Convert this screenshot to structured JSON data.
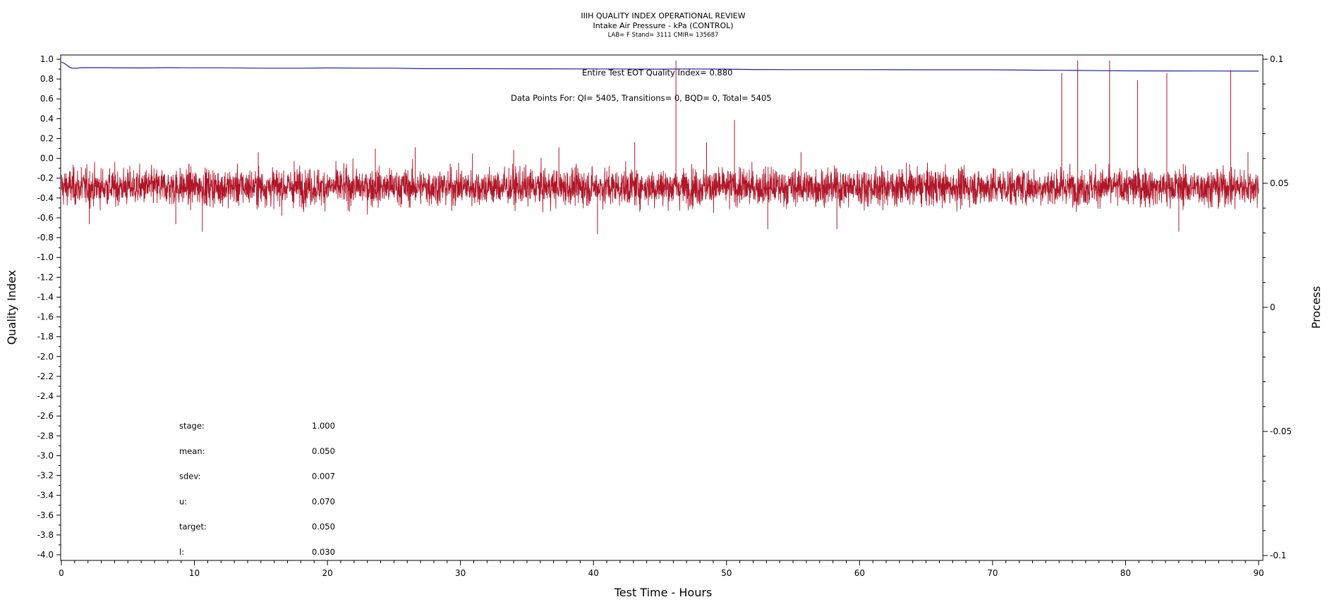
{
  "chart_data": {
    "type": "line",
    "title": "IIIH QUALITY INDEX OPERATIONAL REVIEW",
    "subtitle": "Intake Air Pressure - kPa (CONTROL)",
    "subtitle2": "LAB= F Stand= 3111 CMIR= 135687",
    "xlabel": "Test Time - Hours",
    "ylabel": "Quality Index",
    "y2label": "Process",
    "xlim": [
      0,
      90
    ],
    "ylim": [
      -4.0,
      1.0
    ],
    "y2lim": [
      -0.1,
      0.1
    ],
    "x_ticks": [
      "0",
      "10",
      "20",
      "30",
      "40",
      "50",
      "60",
      "70",
      "80",
      "90"
    ],
    "y_ticks": [
      "1.0",
      "0.8",
      "0.6",
      "0.4",
      "0.2",
      "0.0",
      "-0.2",
      "-0.4",
      "-0.6",
      "-0.8",
      "-1.0",
      "-1.2",
      "-1.4",
      "-1.6",
      "-1.8",
      "-2.0",
      "-2.2",
      "-2.4",
      "-2.6",
      "-2.8",
      "-3.0",
      "-3.2",
      "-3.4",
      "-3.6",
      "-3.8",
      "-4.0"
    ],
    "y2_ticks": [
      "0.1",
      "0.05",
      "0",
      "-0.05",
      "-0.1"
    ],
    "annotations": {
      "eot": "Entire Test EOT Quality Index=   0.880",
      "points": "Data Points For: QI=  5405, Transitions=     0, BQD=     0, Total=  5405"
    },
    "stats": [
      {
        "label": "stage:",
        "value": "1.000"
      },
      {
        "label": "mean:",
        "value": "0.050"
      },
      {
        "label": "sdev:",
        "value": "0.007"
      },
      {
        "label": "u:",
        "value": "0.070"
      },
      {
        "label": "target:",
        "value": "0.050"
      },
      {
        "label": "l:",
        "value": "0.030"
      }
    ],
    "series": [
      {
        "axis": "left",
        "color": "#1f1fa0",
        "points": [
          [
            0,
            0.97
          ],
          [
            0.2,
            0.96
          ],
          [
            0.4,
            0.94
          ],
          [
            0.6,
            0.92
          ],
          [
            0.8,
            0.91
          ],
          [
            1.2,
            0.91
          ],
          [
            1.5,
            0.915
          ],
          [
            3,
            0.915
          ],
          [
            6,
            0.912
          ],
          [
            8,
            0.915
          ],
          [
            10,
            0.913
          ],
          [
            12,
            0.913
          ],
          [
            15,
            0.91
          ],
          [
            18,
            0.91
          ],
          [
            20,
            0.912
          ],
          [
            25,
            0.91
          ],
          [
            27,
            0.905
          ],
          [
            30,
            0.905
          ],
          [
            35,
            0.903
          ],
          [
            40,
            0.902
          ],
          [
            45,
            0.9
          ],
          [
            47,
            0.902
          ],
          [
            50,
            0.9
          ],
          [
            52,
            0.896
          ],
          [
            55,
            0.895
          ],
          [
            60,
            0.895
          ],
          [
            65,
            0.893
          ],
          [
            70,
            0.893
          ],
          [
            73,
            0.89
          ],
          [
            75,
            0.888
          ],
          [
            78,
            0.885
          ],
          [
            80,
            0.883
          ],
          [
            83,
            0.882
          ],
          [
            86,
            0.881
          ],
          [
            90,
            0.88
          ]
        ]
      },
      {
        "axis": "right",
        "color": "#b01628",
        "band": {
          "center": 0.0485,
          "half_width_typical": 0.0065
        },
        "noise_sd": 0.0052,
        "n_points": 5405,
        "spikes": [
          [
            1.5,
            0.0565
          ],
          [
            2.1,
            0.0335
          ],
          [
            8.6,
            0.0335
          ],
          [
            10.6,
            0.0305
          ],
          [
            14.8,
            0.0625
          ],
          [
            17.5,
            0.059
          ],
          [
            23.6,
            0.064
          ],
          [
            26.6,
            0.0645
          ],
          [
            30.9,
            0.062
          ],
          [
            34.0,
            0.0635
          ],
          [
            37.4,
            0.0645
          ],
          [
            40.3,
            0.0295
          ],
          [
            43.1,
            0.0665
          ],
          [
            46.2,
            0.0995
          ],
          [
            48.5,
            0.0665
          ],
          [
            50.6,
            0.0755
          ],
          [
            53.1,
            0.0315
          ],
          [
            55.6,
            0.0625
          ],
          [
            58.3,
            0.0315
          ],
          [
            75.2,
            0.0945
          ],
          [
            76.4,
            0.0995
          ],
          [
            78.8,
            0.0995
          ],
          [
            80.9,
            0.0915
          ],
          [
            83.1,
            0.0945
          ],
          [
            84.0,
            0.0305
          ],
          [
            87.9,
            0.0955
          ],
          [
            89.2,
            0.0625
          ]
        ]
      }
    ],
    "grid": false,
    "legend": "none"
  }
}
